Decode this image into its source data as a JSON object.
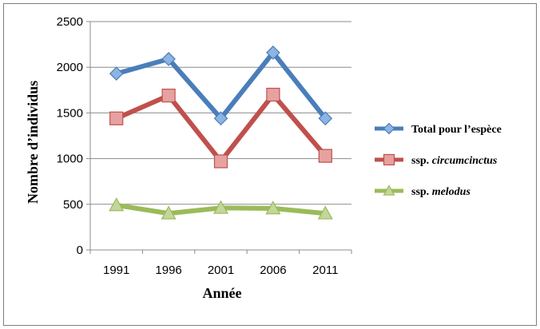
{
  "chart_data": {
    "type": "line",
    "x": [
      1991,
      1996,
      2001,
      2006,
      2011
    ],
    "categories": [
      "1991",
      "1996",
      "2001",
      "2006",
      "2011"
    ],
    "xlabel": "Année",
    "ylabel": "Nombre d’individus",
    "ylim": [
      0,
      2500
    ],
    "yticks": [
      "0",
      "500",
      "1000",
      "1500",
      "2000",
      "2500"
    ],
    "grid": true,
    "legend_placement": "right",
    "series": [
      {
        "name": "Total pour l’espèce",
        "name_parts": {
          "plain": "Total pour l’espèce",
          "italic": ""
        },
        "values": [
          1930,
          2090,
          1440,
          2160,
          1440
        ],
        "color": "#4A7EBB",
        "marker": "diamond",
        "marker_fill": "#8DB4E2"
      },
      {
        "name": "ssp. circumcinctus",
        "name_parts": {
          "plain": "ssp. ",
          "italic": "circumcinctus"
        },
        "values": [
          1440,
          1690,
          970,
          1700,
          1030
        ],
        "color": "#C0504D",
        "marker": "square",
        "marker_fill": "#E6A2A0"
      },
      {
        "name": "ssp. melodus",
        "name_parts": {
          "plain": "ssp. ",
          "italic": "melodus"
        },
        "values": [
          490,
          400,
          460,
          455,
          400
        ],
        "color": "#9BBB59",
        "marker": "triangle",
        "marker_fill": "#C3D69B"
      }
    ]
  }
}
